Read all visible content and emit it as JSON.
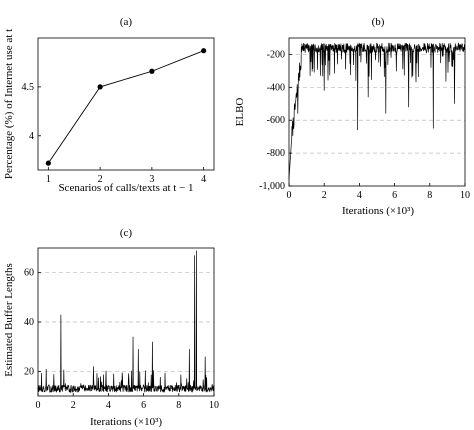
{
  "chart_data": [
    {
      "panel": "(a)",
      "type": "line",
      "x": [
        1,
        2,
        3,
        4
      ],
      "y": [
        3.72,
        4.5,
        4.66,
        4.87
      ],
      "xticks": [
        "1",
        "2",
        "3",
        "4"
      ],
      "yticks": [
        "4",
        "4.5"
      ],
      "xlim": [
        0.8,
        4.2
      ],
      "ylim": [
        3.65,
        5.0
      ],
      "xlabel": "Scenarios of calls/texts at t − 1",
      "ylabel": "Percentage (%) of Internet use at t",
      "markers": true,
      "grid": false,
      "color": "#000000"
    },
    {
      "panel": "(b)",
      "type": "line",
      "x_range": [
        0,
        10
      ],
      "ylim": [
        -1000,
        -100
      ],
      "xticks": [
        "0",
        "2",
        "4",
        "6",
        "8",
        "10"
      ],
      "yticks": [
        "-1,000",
        "-800",
        "-600",
        "-400",
        "-200"
      ],
      "xlabel": "Iterations (×10³)",
      "ylabel": "ELBO",
      "grid": "horizontal dashed",
      "description_values": {
        "start": -960,
        "plateau_mean": -160,
        "plateau_max": -125,
        "dips": [
          {
            "x": 0.5,
            "y": -560
          },
          {
            "x": 1.2,
            "y": -330
          },
          {
            "x": 2.0,
            "y": -420
          },
          {
            "x": 3.9,
            "y": -660
          },
          {
            "x": 4.5,
            "y": -460
          },
          {
            "x": 5.5,
            "y": -560
          },
          {
            "x": 6.8,
            "y": -520
          },
          {
            "x": 8.2,
            "y": -650
          },
          {
            "x": 9.4,
            "y": -500
          }
        ]
      },
      "color": "#000000"
    },
    {
      "panel": "(c)",
      "type": "line",
      "x_range": [
        0,
        10
      ],
      "ylim": [
        10,
        70
      ],
      "xticks": [
        "0",
        "2",
        "4",
        "6",
        "8",
        "10"
      ],
      "yticks": [
        "20",
        "40",
        "60"
      ],
      "xlabel": "Iterations (×10³)",
      "ylabel": "Estimated Buffer Lengths",
      "grid": "horizontal dashed",
      "description_values": {
        "baseline": 13,
        "spikes": [
          {
            "x": 1.3,
            "y": 43
          },
          {
            "x": 5.4,
            "y": 34
          },
          {
            "x": 5.7,
            "y": 29
          },
          {
            "x": 6.5,
            "y": 32
          },
          {
            "x": 8.6,
            "y": 29
          },
          {
            "x": 8.9,
            "y": 67
          },
          {
            "x": 9.0,
            "y": 69
          },
          {
            "x": 9.5,
            "y": 26
          }
        ]
      },
      "color": "#000000"
    }
  ]
}
